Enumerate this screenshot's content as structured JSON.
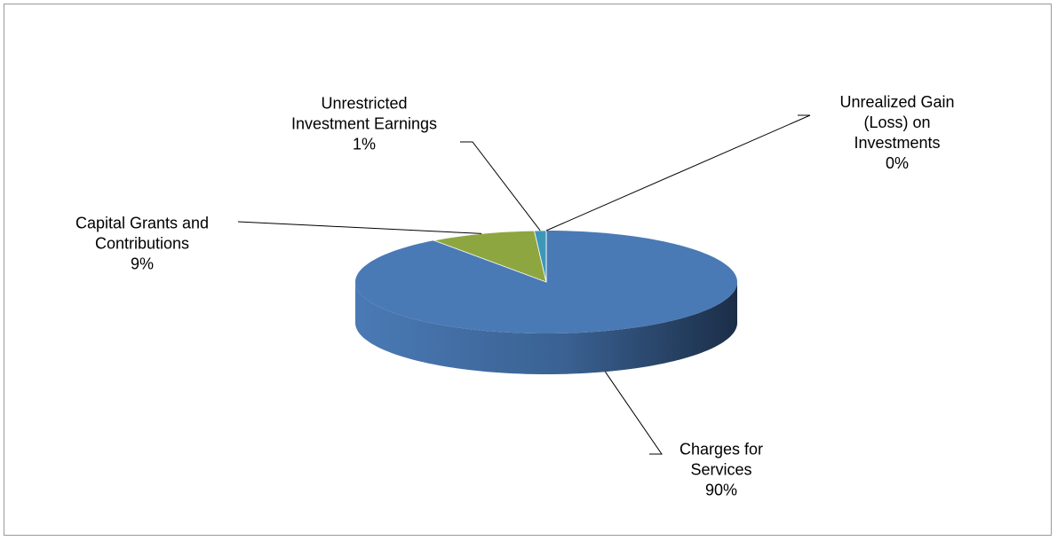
{
  "chart_data": {
    "type": "pie",
    "categories": [
      "Charges for Services",
      "Capital Grants and Contributions",
      "Unrestricted Investment Earnings",
      "Unrealized Gain (Loss) on Investments"
    ],
    "values": [
      90,
      9,
      1,
      0
    ],
    "value_labels": [
      "90%",
      "9%",
      "1%",
      "0%"
    ],
    "colors": [
      "#4a7ab5",
      "#8ea640",
      "#3e96b8",
      "#1f4e80"
    ]
  }
}
